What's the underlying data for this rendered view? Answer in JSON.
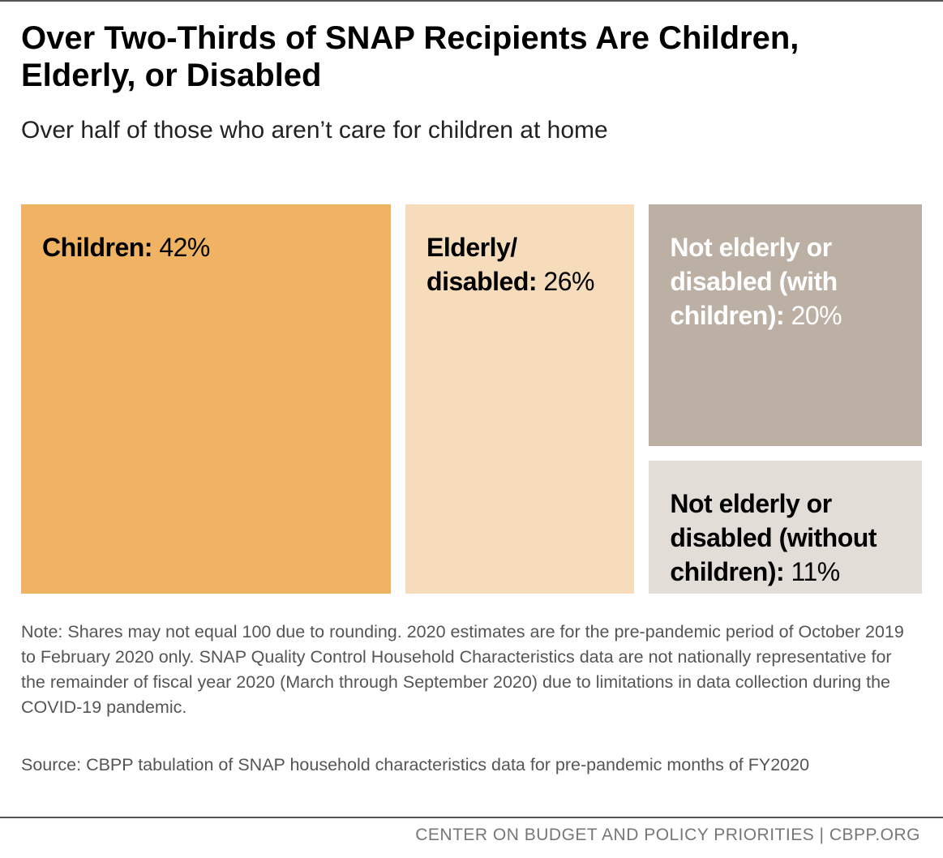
{
  "chart_data": {
    "type": "treemap",
    "title": "Over Two-Thirds of SNAP Recipients Are Children, Elderly, or Disabled",
    "subtitle": "Over half of those who aren’t care for children at home",
    "categories": [
      "Children:",
      "Elderly/ disabled:",
      "Not elderly or disabled (with children):",
      "Not elderly or disabled (without children):"
    ],
    "values": [
      42,
      26,
      20,
      11
    ],
    "value_labels": [
      "42%",
      "26%",
      "20%",
      "11%"
    ],
    "colors": [
      "#f0b263",
      "#f7dcbb",
      "#bbb0a3",
      "#e2ddd7"
    ],
    "label_colors": [
      "#000000",
      "#000000",
      "#ffffff",
      "#000000"
    ],
    "note": "Note: Shares may not equal 100 due to rounding. 2020 estimates are for the pre-pandemic period of October 2019 to February 2020 only. SNAP Quality Control Household Characteristics data are not nationally representative for the remainder of fiscal year 2020 (March through September 2020) due to limitations in data collection during the COVID-19 pandemic.",
    "source": "Source: CBPP tabulation of SNAP household characteristics data for pre-pandemic months of FY2020",
    "footer": "CENTER ON BUDGET AND POLICY PRIORITIES | CBPP.ORG"
  }
}
